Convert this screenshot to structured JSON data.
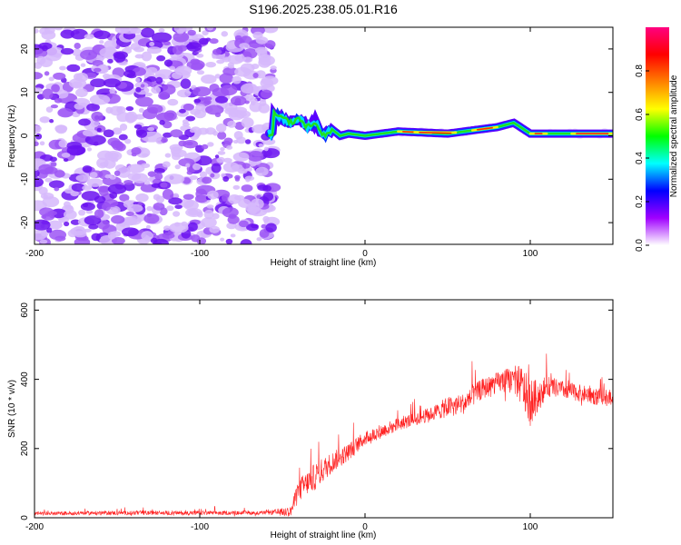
{
  "title": "S196.2025.238.05.01.R16",
  "colors": {
    "snr_line": "#ff2020",
    "noise": "#7a2bff",
    "axis": "#000000"
  },
  "chart_data": [
    {
      "type": "heatmap",
      "name": "spectrogram",
      "xlabel": "Height of straight line (km)",
      "ylabel": "Frequency (Hz)",
      "xlim": [
        -200,
        150
      ],
      "ylim": [
        -25,
        25
      ],
      "xticks": [
        -200,
        -100,
        0,
        100
      ],
      "yticks": [
        -20,
        -10,
        0,
        10,
        20
      ],
      "xtick_labels": [
        "-200",
        "-100",
        "0",
        "100"
      ],
      "ytick_labels": [
        "-20",
        "-10",
        "0",
        "10",
        "20"
      ],
      "noise_region_x": [
        -200,
        -55
      ],
      "signal_track": [
        {
          "x": -55,
          "f": 5
        },
        {
          "x": -50,
          "f": 4
        },
        {
          "x": -45,
          "f": 3
        },
        {
          "x": -40,
          "f": 4
        },
        {
          "x": -35,
          "f": 2
        },
        {
          "x": -30,
          "f": 3
        },
        {
          "x": -25,
          "f": 0
        },
        {
          "x": -20,
          "f": 1.5
        },
        {
          "x": -15,
          "f": 0
        },
        {
          "x": -10,
          "f": 0.5
        },
        {
          "x": 0,
          "f": 0
        },
        {
          "x": 20,
          "f": 1
        },
        {
          "x": 50,
          "f": 0.5
        },
        {
          "x": 80,
          "f": 2
        },
        {
          "x": 90,
          "f": 3
        },
        {
          "x": 100,
          "f": 0.5
        },
        {
          "x": 150,
          "f": 0.5
        }
      ],
      "colorbar": {
        "label": "Normalized spectral amplitude",
        "range": [
          0,
          1
        ],
        "ticks": [
          "0.0",
          "0.2",
          "0.4",
          "0.6",
          "0.8"
        ],
        "colors": [
          "#ffffff",
          "#a000ff",
          "#0000ff",
          "#00ffff",
          "#00ff00",
          "#ffff00",
          "#ff8000",
          "#ff0000",
          "#ff0080"
        ]
      }
    },
    {
      "type": "line",
      "name": "snr",
      "xlabel": "Height of straight line (km)",
      "ylabel": "SNR (10 * v/v)",
      "xlim": [
        -200,
        150
      ],
      "ylim": [
        0,
        630
      ],
      "xticks": [
        -200,
        -100,
        0,
        100
      ],
      "yticks": [
        0,
        200,
        400,
        600
      ],
      "xtick_labels": [
        "-200",
        "-100",
        "0",
        "100"
      ],
      "ytick_labels": [
        "0",
        "200",
        "400",
        "600"
      ],
      "series": [
        {
          "name": "SNR",
          "x": [
            -200,
            -150,
            -100,
            -60,
            -45,
            -40,
            -35,
            -30,
            -20,
            -10,
            0,
            20,
            40,
            50,
            60,
            70,
            80,
            90,
            95,
            100,
            110,
            120,
            130,
            140,
            150
          ],
          "y": [
            12,
            14,
            14,
            14,
            18,
            80,
            100,
            120,
            160,
            190,
            230,
            270,
            300,
            320,
            330,
            370,
            390,
            400,
            380,
            330,
            380,
            370,
            360,
            350,
            350
          ],
          "amp": [
            10,
            12,
            12,
            10,
            30,
            70,
            70,
            80,
            60,
            50,
            40,
            40,
            40,
            60,
            60,
            60,
            60,
            80,
            120,
            130,
            60,
            50,
            50,
            50,
            40
          ]
        }
      ]
    }
  ]
}
